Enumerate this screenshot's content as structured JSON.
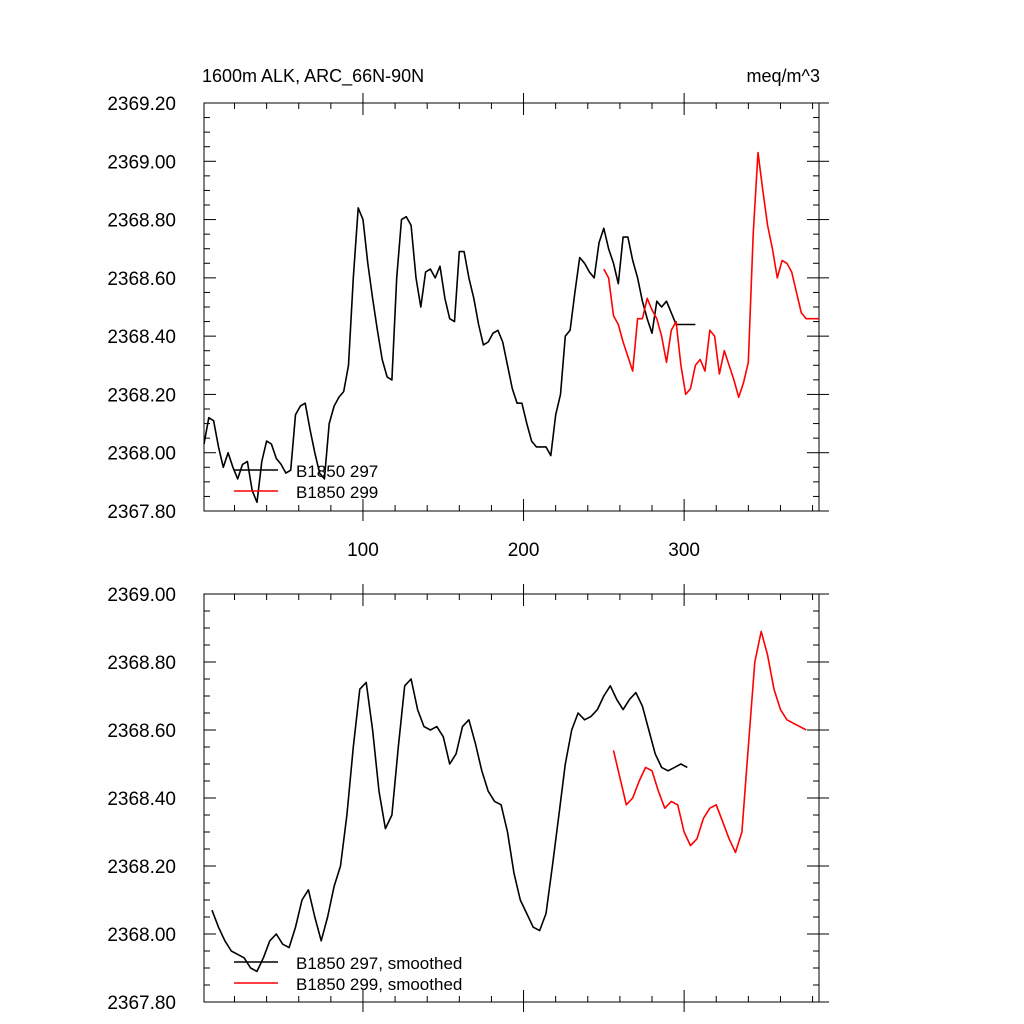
{
  "units": "meq/m^3",
  "title": "1600m ALK, ARC_66N-90N",
  "colors": {
    "series_297": "#000000",
    "series_299": "#ff0000"
  },
  "chart_data": [
    {
      "type": "line",
      "title": "1600m ALK, ARC_66N-90N",
      "units_label": "meq/m^3",
      "xlim": [
        1,
        384
      ],
      "ylim": [
        2367.8,
        2369.2
      ],
      "x_ticks": [
        100,
        200,
        300
      ],
      "x_tick_labels": [
        "100",
        "200",
        "300"
      ],
      "y_ticks": [
        2367.8,
        2368.0,
        2368.2,
        2368.4,
        2368.6,
        2368.8,
        2369.0,
        2369.2
      ],
      "y_tick_labels": [
        "2367.80",
        "2368.00",
        "2368.20",
        "2368.40",
        "2368.60",
        "2368.80",
        "2369.00",
        "2369.20"
      ],
      "grid": false,
      "legend_position": "bottom-left",
      "series": [
        {
          "name": "B1850 297",
          "color": "#000000",
          "x": [
            1,
            4,
            7,
            10,
            13,
            16,
            19,
            22,
            25,
            28,
            31,
            34,
            37,
            40,
            43,
            46,
            49,
            52,
            55,
            58,
            61,
            64,
            67,
            70,
            73,
            76,
            79,
            82,
            85,
            88,
            91,
            94,
            97,
            100,
            103,
            106,
            109,
            112,
            115,
            118,
            121,
            124,
            127,
            130,
            133,
            136,
            139,
            142,
            145,
            148,
            151,
            154,
            157,
            160,
            163,
            166,
            169,
            172,
            175,
            178,
            181,
            184,
            187,
            190,
            193,
            196,
            199,
            202,
            205,
            208,
            211,
            214,
            217,
            220,
            223,
            226,
            229,
            232,
            235,
            238,
            241,
            244,
            247,
            250,
            253,
            256,
            259,
            262,
            265,
            268,
            271,
            274,
            277,
            280,
            283,
            286,
            289,
            292,
            295,
            298,
            301,
            304,
            307
          ],
          "y": [
            2368.03,
            2368.12,
            2368.11,
            2368.02,
            2367.95,
            2368.0,
            2367.95,
            2367.91,
            2367.96,
            2367.97,
            2367.87,
            2367.83,
            2367.97,
            2368.04,
            2368.03,
            2367.98,
            2367.96,
            2367.93,
            2367.94,
            2368.13,
            2368.16,
            2368.17,
            2368.08,
            2368.0,
            2367.93,
            2367.91,
            2368.1,
            2368.16,
            2368.19,
            2368.21,
            2368.3,
            2368.6,
            2368.84,
            2368.8,
            2368.65,
            2368.53,
            2368.42,
            2368.32,
            2368.26,
            2368.25,
            2368.6,
            2368.8,
            2368.81,
            2368.78,
            2368.6,
            2368.5,
            2368.62,
            2368.63,
            2368.6,
            2368.64,
            2368.53,
            2368.46,
            2368.45,
            2368.69,
            2368.69,
            2368.6,
            2368.53,
            2368.44,
            2368.37,
            2368.38,
            2368.41,
            2368.42,
            2368.38,
            2368.3,
            2368.22,
            2368.17,
            2368.17,
            2368.1,
            2368.04,
            2368.02,
            2368.02,
            2368.02,
            2367.99,
            2368.13,
            2368.2,
            2368.4,
            2368.42,
            2368.55,
            2368.67,
            2368.65,
            2368.62,
            2368.6,
            2368.72,
            2368.77,
            2368.7,
            2368.65,
            2368.58,
            2368.74,
            2368.74,
            2368.66,
            2368.6,
            2368.52,
            2368.46,
            2368.41,
            2368.52,
            2368.5,
            2368.52,
            2368.48,
            2368.44,
            2368.44,
            2368.44,
            2368.44,
            2368.44
          ]
        },
        {
          "name": "B1850 299",
          "color": "#ff0000",
          "x": [
            250,
            253,
            256,
            259,
            262,
            265,
            268,
            271,
            274,
            277,
            280,
            283,
            286,
            289,
            292,
            295,
            298,
            301,
            304,
            307,
            310,
            313,
            316,
            319,
            322,
            325,
            328,
            331,
            334,
            337,
            340,
            343,
            346,
            349,
            352,
            355,
            358,
            361,
            364,
            367,
            370,
            373,
            376,
            379,
            382,
            384
          ],
          "y": [
            2368.63,
            2368.6,
            2368.47,
            2368.44,
            2368.38,
            2368.33,
            2368.28,
            2368.46,
            2368.46,
            2368.53,
            2368.49,
            2368.46,
            2368.4,
            2368.31,
            2368.42,
            2368.45,
            2368.3,
            2368.2,
            2368.22,
            2368.3,
            2368.32,
            2368.28,
            2368.42,
            2368.4,
            2368.27,
            2368.35,
            2368.3,
            2368.25,
            2368.19,
            2368.24,
            2368.31,
            2368.75,
            2369.03,
            2368.9,
            2368.78,
            2368.7,
            2368.6,
            2368.66,
            2368.65,
            2368.62,
            2368.55,
            2368.48,
            2368.46,
            2368.46,
            2368.46,
            2368.46
          ]
        }
      ],
      "legend": [
        "B1850 297",
        "B1850 299"
      ]
    },
    {
      "type": "line",
      "title": "",
      "xlim": [
        1,
        384
      ],
      "ylim": [
        2367.8,
        2369.0
      ],
      "x_ticks": [
        100,
        200,
        300
      ],
      "y_ticks": [
        2367.8,
        2368.0,
        2368.2,
        2368.4,
        2368.6,
        2368.8,
        2369.0
      ],
      "y_tick_labels": [
        "2367.80",
        "2368.00",
        "2368.20",
        "2368.40",
        "2368.60",
        "2368.80",
        "2369.00"
      ],
      "grid": false,
      "legend_position": "bottom-left",
      "series": [
        {
          "name": "B1850 297, smoothed",
          "color": "#000000",
          "x": [
            6,
            10,
            14,
            18,
            22,
            26,
            30,
            34,
            38,
            42,
            46,
            50,
            54,
            58,
            62,
            66,
            70,
            74,
            78,
            82,
            86,
            90,
            94,
            98,
            102,
            106,
            110,
            114,
            118,
            122,
            126,
            130,
            134,
            138,
            142,
            146,
            150,
            154,
            158,
            162,
            166,
            170,
            174,
            178,
            182,
            186,
            190,
            194,
            198,
            202,
            206,
            210,
            214,
            218,
            222,
            226,
            230,
            234,
            238,
            242,
            246,
            250,
            254,
            258,
            262,
            266,
            270,
            274,
            278,
            282,
            286,
            290,
            294,
            298,
            302
          ],
          "y": [
            2368.07,
            2368.02,
            2367.98,
            2367.95,
            2367.94,
            2367.93,
            2367.9,
            2367.89,
            2367.93,
            2367.98,
            2368.0,
            2367.97,
            2367.96,
            2368.02,
            2368.1,
            2368.13,
            2368.05,
            2367.98,
            2368.05,
            2368.14,
            2368.2,
            2368.35,
            2368.55,
            2368.72,
            2368.74,
            2368.6,
            2368.42,
            2368.31,
            2368.35,
            2368.55,
            2368.73,
            2368.75,
            2368.66,
            2368.61,
            2368.6,
            2368.61,
            2368.58,
            2368.5,
            2368.53,
            2368.61,
            2368.63,
            2368.56,
            2368.48,
            2368.42,
            2368.39,
            2368.38,
            2368.3,
            2368.18,
            2368.1,
            2368.06,
            2368.02,
            2368.01,
            2368.06,
            2368.2,
            2368.35,
            2368.5,
            2368.6,
            2368.65,
            2368.63,
            2368.64,
            2368.66,
            2368.7,
            2368.73,
            2368.69,
            2368.66,
            2368.69,
            2368.71,
            2368.67,
            2368.6,
            2368.53,
            2368.49,
            2368.48,
            2368.49,
            2368.5,
            2368.49
          ]
        },
        {
          "name": "B1850 299, smoothed",
          "color": "#ff0000",
          "x": [
            256,
            260,
            264,
            268,
            272,
            276,
            280,
            284,
            288,
            292,
            296,
            300,
            304,
            308,
            312,
            316,
            320,
            324,
            328,
            332,
            336,
            340,
            344,
            348,
            352,
            356,
            360,
            364,
            368,
            372,
            376
          ],
          "y": [
            2368.54,
            2368.46,
            2368.38,
            2368.4,
            2368.45,
            2368.49,
            2368.48,
            2368.42,
            2368.37,
            2368.39,
            2368.38,
            2368.3,
            2368.26,
            2368.28,
            2368.34,
            2368.37,
            2368.38,
            2368.33,
            2368.28,
            2368.24,
            2368.3,
            2368.55,
            2368.8,
            2368.89,
            2368.82,
            2368.72,
            2368.66,
            2368.63,
            2368.62,
            2368.61,
            2368.6
          ]
        }
      ],
      "legend": [
        "B1850 297, smoothed",
        "B1850 299, smoothed"
      ]
    }
  ]
}
